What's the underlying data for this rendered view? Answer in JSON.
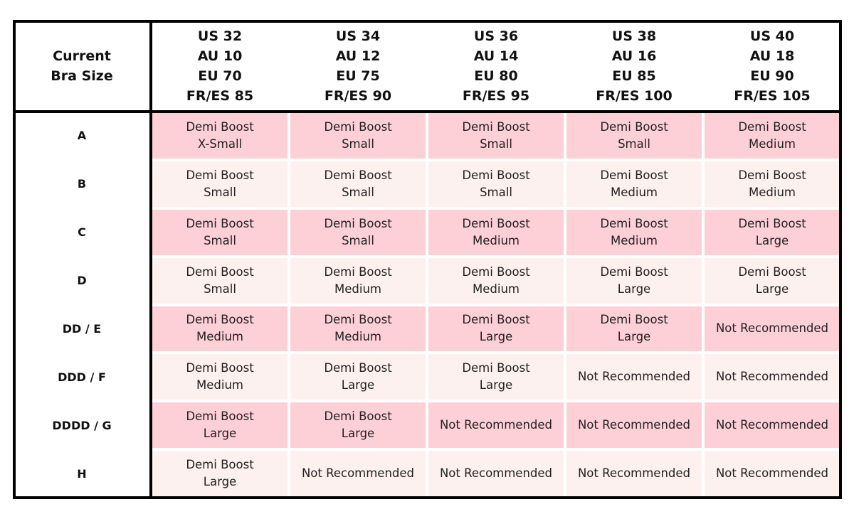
{
  "table": {
    "corner": [
      "Current",
      "Bra Size"
    ],
    "columns": [
      [
        "US 32",
        "AU 10",
        "EU 70",
        "FR/ES 85"
      ],
      [
        "US 34",
        "AU 12",
        "EU 75",
        "FR/ES 90"
      ],
      [
        "US 36",
        "AU 14",
        "EU 80",
        "FR/ES 95"
      ],
      [
        "US 38",
        "AU 16",
        "EU 85",
        "FR/ES 100"
      ],
      [
        "US 40",
        "AU 18",
        "EU 90",
        "FR/ES 105"
      ]
    ],
    "rows": [
      {
        "label": "A",
        "cells": [
          [
            "Demi Boost",
            "X-Small"
          ],
          [
            "Demi Boost",
            "Small"
          ],
          [
            "Demi Boost",
            "Small"
          ],
          [
            "Demi Boost",
            "Small"
          ],
          [
            "Demi Boost",
            "Medium"
          ]
        ]
      },
      {
        "label": "B",
        "cells": [
          [
            "Demi Boost",
            "Small"
          ],
          [
            "Demi Boost",
            "Small"
          ],
          [
            "Demi Boost",
            "Small"
          ],
          [
            "Demi Boost",
            "Medium"
          ],
          [
            "Demi Boost",
            "Medium"
          ]
        ]
      },
      {
        "label": "C",
        "cells": [
          [
            "Demi Boost",
            "Small"
          ],
          [
            "Demi Boost",
            "Small"
          ],
          [
            "Demi Boost",
            "Medium"
          ],
          [
            "Demi Boost",
            "Medium"
          ],
          [
            "Demi Boost",
            "Large"
          ]
        ]
      },
      {
        "label": "D",
        "cells": [
          [
            "Demi Boost",
            "Small"
          ],
          [
            "Demi Boost",
            "Medium"
          ],
          [
            "Demi Boost",
            "Medium"
          ],
          [
            "Demi Boost",
            "Large"
          ],
          [
            "Demi Boost",
            "Large"
          ]
        ]
      },
      {
        "label": "DD / E",
        "cells": [
          [
            "Demi Boost",
            "Medium"
          ],
          [
            "Demi Boost",
            "Medium"
          ],
          [
            "Demi Boost",
            "Large"
          ],
          [
            "Demi Boost",
            "Large"
          ],
          [
            "Not Recommended"
          ]
        ]
      },
      {
        "label": "DDD / F",
        "cells": [
          [
            "Demi Boost",
            "Medium"
          ],
          [
            "Demi Boost",
            "Large"
          ],
          [
            "Demi Boost",
            "Large"
          ],
          [
            "Not Recommended"
          ],
          [
            "Not Recommended"
          ]
        ]
      },
      {
        "label": "DDDD / G",
        "cells": [
          [
            "Demi Boost",
            "Large"
          ],
          [
            "Demi Boost",
            "Large"
          ],
          [
            "Not Recommended"
          ],
          [
            "Not Recommended"
          ],
          [
            "Not Recommended"
          ]
        ]
      },
      {
        "label": "H",
        "cells": [
          [
            "Demi Boost",
            "Large"
          ],
          [
            "Not Recommended"
          ],
          [
            "Not Recommended"
          ],
          [
            "Not Recommended"
          ],
          [
            "Not Recommended"
          ]
        ]
      }
    ]
  }
}
